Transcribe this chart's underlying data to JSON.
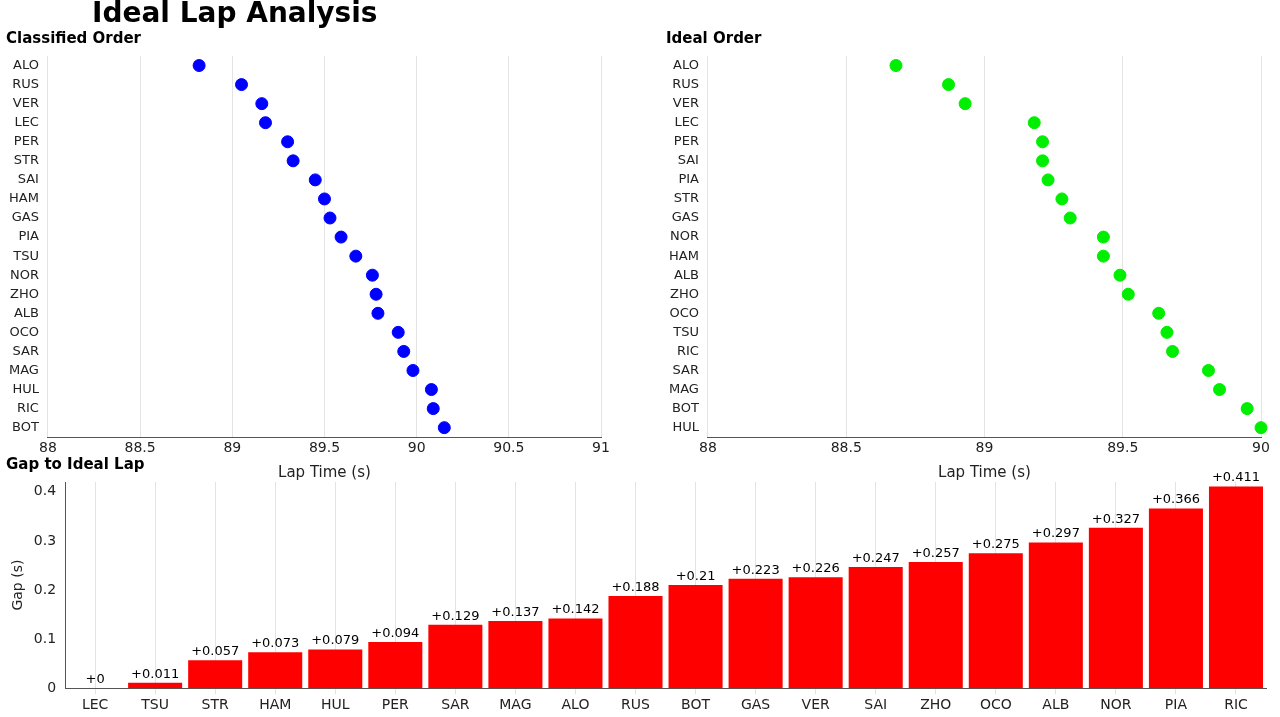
{
  "chart_data": [
    {
      "type": "scatter",
      "title": "Ideal Lap Analysis",
      "subtitle": "Classified Order",
      "xlabel": "Lap Time (s)",
      "orientation": "horizontal",
      "marker": "circle",
      "grid": "x",
      "categories": [
        "ALO",
        "RUS",
        "VER",
        "LEC",
        "PER",
        "STR",
        "SAI",
        "HAM",
        "GAS",
        "PIA",
        "TSU",
        "NOR",
        "ZHO",
        "ALB",
        "OCO",
        "SAR",
        "MAG",
        "HUL",
        "RIC",
        "BOT"
      ],
      "series": [
        {
          "color": "#0000ff",
          "values": [
            88.82,
            89.05,
            89.16,
            89.18,
            89.3,
            89.33,
            89.45,
            89.5,
            89.53,
            89.59,
            89.67,
            89.76,
            89.78,
            89.79,
            89.9,
            89.93,
            89.98,
            90.08,
            90.09,
            90.15
          ]
        }
      ],
      "xlim": [
        88,
        91
      ],
      "xticks": [
        88,
        88.5,
        89,
        89.5,
        90,
        90.5,
        91
      ]
    },
    {
      "type": "scatter",
      "title": "Ideal Order",
      "xlabel": "Lap Time (s)",
      "orientation": "horizontal",
      "marker": "circle",
      "grid": "x",
      "categories": [
        "ALO",
        "RUS",
        "VER",
        "LEC",
        "PER",
        "SAI",
        "PIA",
        "STR",
        "GAS",
        "NOR",
        "HAM",
        "ALB",
        "ZHO",
        "OCO",
        "TSU",
        "RIC",
        "SAR",
        "MAG",
        "BOT",
        "HUL"
      ],
      "series": [
        {
          "color": "#00ee00",
          "values": [
            88.68,
            88.87,
            88.93,
            89.18,
            89.21,
            89.21,
            89.23,
            89.28,
            89.31,
            89.43,
            89.43,
            89.49,
            89.52,
            89.63,
            89.66,
            89.68,
            89.81,
            89.85,
            89.95,
            90.0
          ]
        }
      ],
      "xlim": [
        88,
        90
      ],
      "xticks": [
        88,
        88.5,
        89,
        89.5,
        90
      ]
    },
    {
      "type": "bar",
      "title": "Gap to Ideal Lap",
      "ylabel": "Gap (s)",
      "grid": "x",
      "categories": [
        "LEC",
        "TSU",
        "STR",
        "HAM",
        "HUL",
        "PER",
        "SAR",
        "MAG",
        "ALO",
        "RUS",
        "BOT",
        "GAS",
        "VER",
        "SAI",
        "ZHO",
        "OCO",
        "ALB",
        "NOR",
        "PIA",
        "RIC"
      ],
      "series": [
        {
          "color": "#ff0000",
          "values": [
            0,
            0.011,
            0.057,
            0.073,
            0.079,
            0.094,
            0.129,
            0.137,
            0.142,
            0.188,
            0.21,
            0.223,
            0.226,
            0.247,
            0.257,
            0.275,
            0.297,
            0.327,
            0.366,
            0.411
          ],
          "value_labels": [
            "+0",
            "+0.011",
            "+0.057",
            "+0.073",
            "+0.079",
            "+0.094",
            "+0.129",
            "+0.137",
            "+0.142",
            "+0.188",
            "+0.21",
            "+0.223",
            "+0.226",
            "+0.247",
            "+0.257",
            "+0.275",
            "+0.297",
            "+0.327",
            "+0.366",
            "+0.411"
          ]
        }
      ],
      "ylim": [
        0,
        0.42
      ],
      "yticks": [
        0,
        0.1,
        0.2,
        0.3,
        0.4
      ]
    }
  ]
}
